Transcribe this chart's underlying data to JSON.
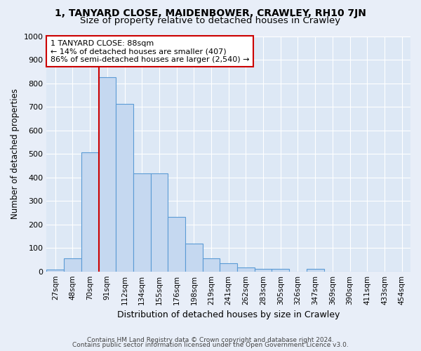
{
  "title": "1, TANYARD CLOSE, MAIDENBOWER, CRAWLEY, RH10 7JN",
  "subtitle": "Size of property relative to detached houses in Crawley",
  "xlabel": "Distribution of detached houses by size in Crawley",
  "ylabel": "Number of detached properties",
  "categories": [
    "27sqm",
    "48sqm",
    "70sqm",
    "91sqm",
    "112sqm",
    "134sqm",
    "155sqm",
    "176sqm",
    "198sqm",
    "219sqm",
    "241sqm",
    "262sqm",
    "283sqm",
    "305sqm",
    "326sqm",
    "347sqm",
    "369sqm",
    "390sqm",
    "411sqm",
    "433sqm",
    "454sqm"
  ],
  "values": [
    8,
    57,
    505,
    825,
    713,
    418,
    418,
    232,
    118,
    57,
    35,
    18,
    12,
    10,
    0,
    10,
    0,
    0,
    0,
    0,
    0
  ],
  "bar_color": "#c5d8f0",
  "bar_edge_color": "#5b9bd5",
  "fig_background": "#e8eef8",
  "ax_background": "#dde8f5",
  "grid_color": "#ffffff",
  "property_line_color": "#cc0000",
  "annotation_text_line1": "1 TANYARD CLOSE: 88sqm",
  "annotation_text_line2": "← 14% of detached houses are smaller (407)",
  "annotation_text_line3": "86% of semi-detached houses are larger (2,540) →",
  "annotation_box_facecolor": "#ffffff",
  "annotation_box_edgecolor": "#cc0000",
  "ylim": [
    0,
    1000
  ],
  "yticks": [
    0,
    100,
    200,
    300,
    400,
    500,
    600,
    700,
    800,
    900,
    1000
  ],
  "title_fontsize": 10,
  "subtitle_fontsize": 9.5,
  "footnote1": "Contains HM Land Registry data © Crown copyright and database right 2024.",
  "footnote2": "Contains public sector information licensed under the Open Government Licence v3.0."
}
